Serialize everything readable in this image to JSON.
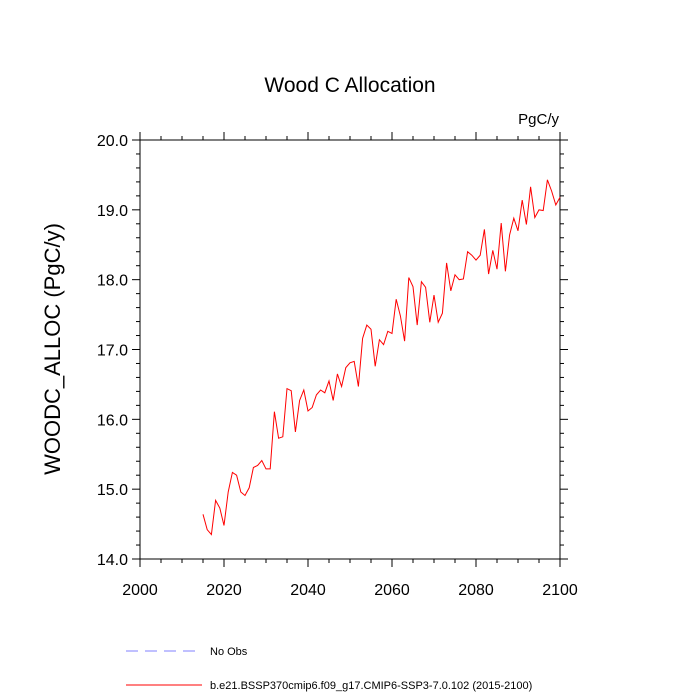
{
  "chart_data": {
    "type": "line",
    "title": "Wood C Allocation",
    "units_label": "PgC/y",
    "xlabel": "",
    "ylabel": "WOODC_ALLOC  (PgC/y)",
    "xlim": [
      2000,
      2100
    ],
    "ylim": [
      14.0,
      20.0
    ],
    "x_ticks": [
      "2000",
      "2020",
      "2040",
      "2060",
      "2080",
      "2100"
    ],
    "y_ticks": [
      "14.0",
      "15.0",
      "16.0",
      "17.0",
      "18.0",
      "19.0",
      "20.0"
    ],
    "grid": false,
    "legend_position": "bottom",
    "series": [
      {
        "name": "No Obs",
        "color": "#8080ff",
        "style": "dashed",
        "values": []
      },
      {
        "name": "b.e21.BSSP370cmip6.f09_g17.CMIP6-SSP3-7.0.102 (2015-2100)",
        "color": "#ff0000",
        "style": "solid",
        "x": [
          2015,
          2016,
          2017,
          2018,
          2019,
          2020,
          2021,
          2022,
          2023,
          2024,
          2025,
          2026,
          2027,
          2028,
          2029,
          2030,
          2031,
          2032,
          2033,
          2034,
          2035,
          2036,
          2037,
          2038,
          2039,
          2040,
          2041,
          2042,
          2043,
          2044,
          2045,
          2046,
          2047,
          2048,
          2049,
          2050,
          2051,
          2052,
          2053,
          2054,
          2055,
          2056,
          2057,
          2058,
          2059,
          2060,
          2061,
          2062,
          2063,
          2064,
          2065,
          2066,
          2067,
          2068,
          2069,
          2070,
          2071,
          2072,
          2073,
          2074,
          2075,
          2076,
          2077,
          2078,
          2079,
          2080,
          2081,
          2082,
          2083,
          2084,
          2085,
          2086,
          2087,
          2088,
          2089,
          2090,
          2091,
          2092,
          2093,
          2094,
          2095,
          2096,
          2097,
          2098,
          2099,
          2100
        ],
        "values": [
          14.64,
          14.42,
          14.35,
          14.84,
          14.73,
          14.48,
          14.96,
          15.24,
          15.2,
          14.96,
          14.91,
          15.02,
          15.31,
          15.34,
          15.41,
          15.29,
          15.29,
          16.11,
          15.73,
          15.75,
          16.44,
          16.41,
          15.82,
          16.27,
          16.42,
          16.12,
          16.17,
          16.35,
          16.42,
          16.38,
          16.55,
          16.27,
          16.65,
          16.47,
          16.74,
          16.81,
          16.83,
          16.47,
          17.16,
          17.35,
          17.29,
          16.76,
          17.14,
          17.07,
          17.26,
          17.23,
          17.72,
          17.48,
          17.12,
          18.03,
          17.9,
          17.35,
          17.97,
          17.89,
          17.39,
          17.78,
          17.39,
          17.52,
          18.24,
          17.84,
          18.07,
          18.0,
          18.01,
          18.4,
          18.35,
          18.28,
          18.35,
          18.72,
          18.08,
          18.42,
          18.15,
          18.81,
          18.12,
          18.64,
          18.88,
          18.7,
          19.14,
          18.79,
          19.33,
          18.89,
          19.0,
          18.99,
          19.43,
          19.27,
          19.07,
          19.18
        ]
      }
    ]
  }
}
